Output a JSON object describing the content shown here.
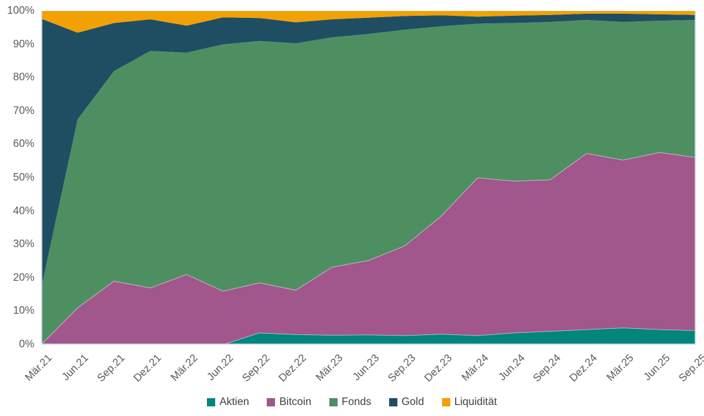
{
  "chart_data": {
    "type": "area",
    "stacked": true,
    "percent_stacked": true,
    "categories": [
      "Mär.21",
      "Jun.21",
      "Sep.21",
      "Dez.21",
      "Mär.22",
      "Jun.22",
      "Sep.22",
      "Dez.22",
      "Mär.23",
      "Jun.23",
      "Sep.23",
      "Dez.23",
      "Mär.24",
      "Jun.24",
      "Sep.24",
      "Dez.24",
      "Mär.25",
      "Jun.25",
      "Sep.25"
    ],
    "series": [
      {
        "name": "Aktien",
        "color": "#02857C",
        "values": [
          0,
          0,
          0,
          0,
          0,
          0,
          3.5,
          3.0,
          2.8,
          2.9,
          2.7,
          3.1,
          2.7,
          3.5,
          4.0,
          4.5,
          5.0,
          4.5,
          4.2
        ]
      },
      {
        "name": "Bitcoin",
        "color": "#A1568C",
        "values": [
          0,
          11.0,
          19.0,
          17.0,
          21.0,
          16.0,
          15.0,
          13.3,
          20.4,
          22.3,
          26.9,
          35.4,
          47.3,
          45.5,
          45.4,
          52.8,
          50.3,
          53.1,
          51.9
        ]
      },
      {
        "name": "Fonds",
        "color": "#4E8F62",
        "values": [
          17.0,
          56.5,
          63.0,
          71.0,
          66.5,
          74.0,
          72.5,
          74.0,
          68.9,
          67.9,
          64.8,
          56.9,
          46.2,
          47.4,
          47.3,
          40.0,
          41.4,
          39.5,
          41.2
        ]
      },
      {
        "name": "Gold",
        "color": "#1F4E63",
        "values": [
          80.7,
          26.0,
          14.4,
          9.5,
          8.1,
          8.1,
          6.9,
          6.3,
          5.4,
          4.9,
          4.1,
          3.3,
          2.1,
          2.2,
          2.1,
          1.9,
          2.5,
          1.9,
          1.5
        ]
      },
      {
        "name": "Liquidität",
        "color": "#F2A104",
        "values": [
          2.3,
          6.5,
          3.6,
          2.5,
          4.4,
          1.9,
          2.1,
          3.4,
          2.5,
          2.0,
          1.5,
          1.3,
          1.7,
          1.4,
          1.2,
          0.8,
          0.8,
          1.0,
          1.2
        ]
      }
    ],
    "y_axis": {
      "min": 0,
      "max": 100,
      "tick_step": 10,
      "tick_labels": [
        "0%",
        "10%",
        "20%",
        "30%",
        "40%",
        "50%",
        "60%",
        "70%",
        "80%",
        "90%",
        "100%"
      ]
    },
    "x_axis": {
      "label_rotation_deg": -45
    },
    "legend_position": "bottom",
    "title": ""
  },
  "colors": {
    "background": "#FFFFFF",
    "axis_text": "#595959",
    "legend_text": "#404040",
    "plot_border": "#C6D9E2"
  }
}
